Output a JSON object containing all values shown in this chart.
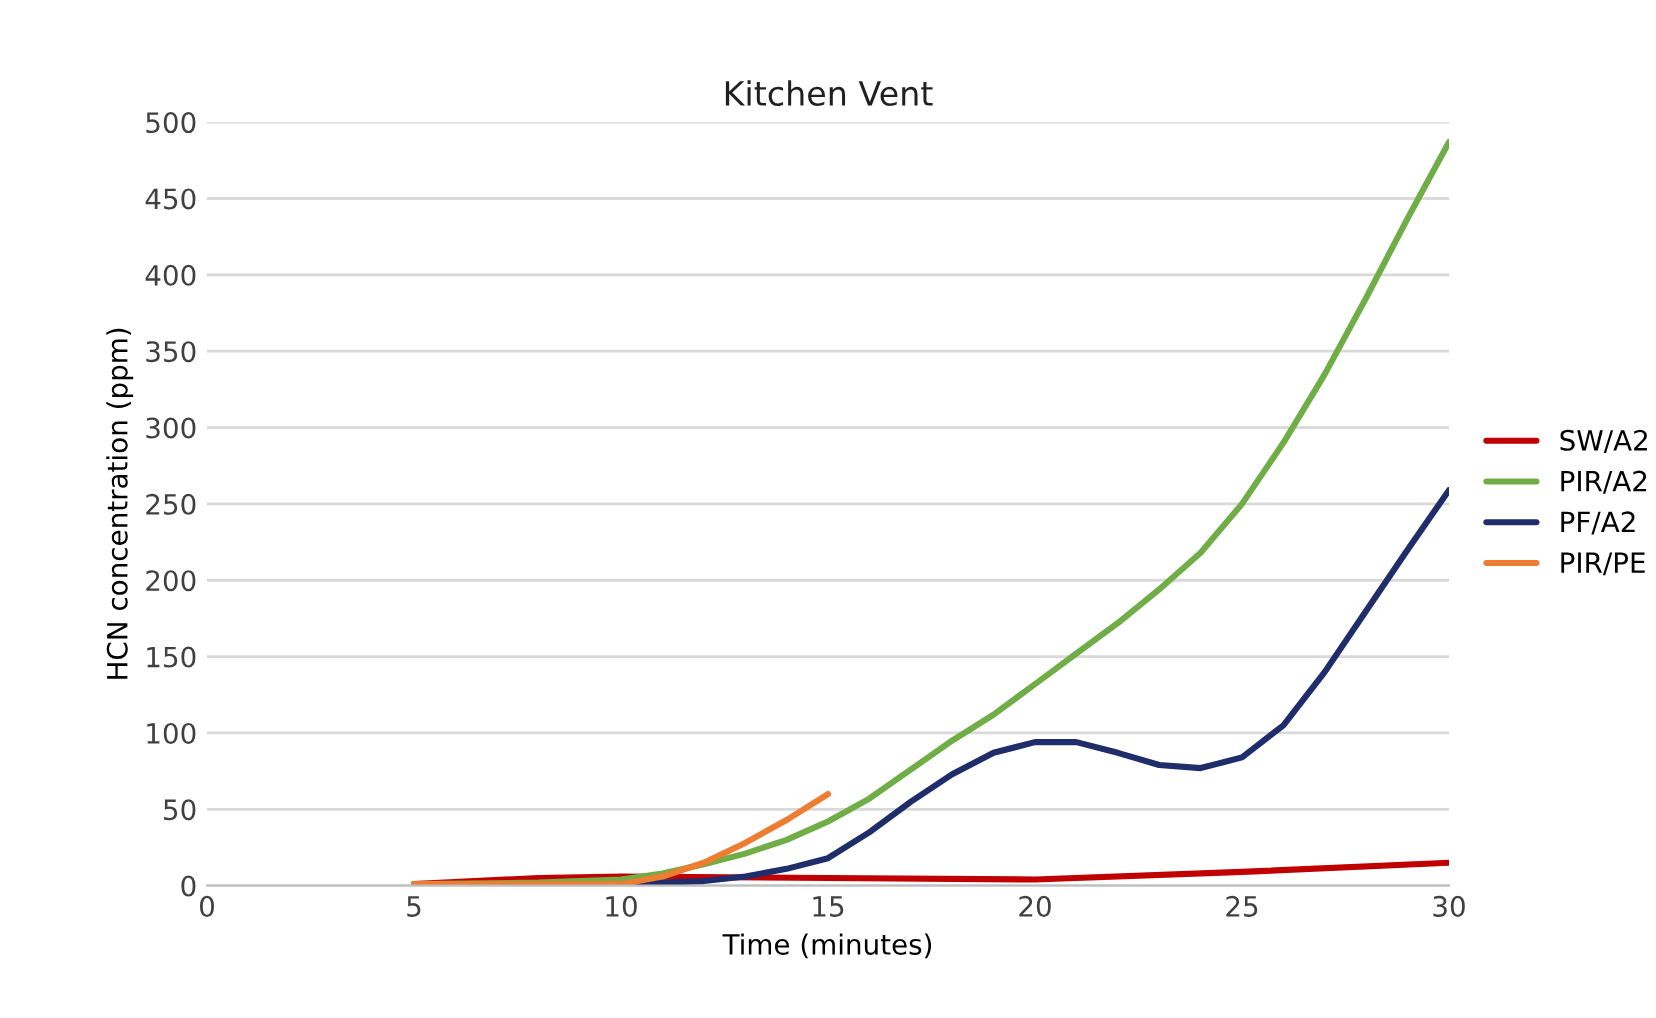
{
  "chart_data": {
    "type": "line",
    "title": "Kitchen Vent",
    "xlabel": "Time (minutes)",
    "ylabel": "HCN concentration (ppm)",
    "xlim": [
      0,
      30
    ],
    "xticks": [
      0,
      5,
      10,
      15,
      20,
      25,
      30
    ],
    "ylim": [
      0,
      500
    ],
    "yticks": [
      0,
      50,
      100,
      150,
      200,
      250,
      300,
      350,
      400,
      450,
      500
    ],
    "grid": "y",
    "legend": "right",
    "marker": "none",
    "line_style": "solid",
    "series": [
      {
        "name": "SW/A2",
        "color": "#c00000",
        "x": [
          5,
          8,
          10,
          15,
          20,
          25,
          30
        ],
        "values": [
          1,
          5,
          6,
          5,
          4,
          9,
          15
        ]
      },
      {
        "name": "PIR/A2",
        "color": "#70ad47",
        "x": [
          5,
          8,
          10,
          11,
          12,
          13,
          14,
          15,
          16,
          17,
          18,
          19,
          20,
          21,
          22,
          23,
          24,
          25,
          26,
          27,
          28,
          29,
          30
        ],
        "values": [
          1,
          2,
          4,
          8,
          14,
          21,
          30,
          42,
          57,
          76,
          95,
          112,
          132,
          152,
          172,
          194,
          218,
          250,
          290,
          335,
          385,
          437,
          487
        ]
      },
      {
        "name": "PF/A2",
        "color": "#1f2d6b",
        "x": [
          8,
          10,
          12,
          13,
          14,
          15,
          16,
          17,
          18,
          19,
          20,
          21,
          22,
          23,
          24,
          25,
          26,
          27,
          28,
          29,
          30
        ],
        "values": [
          0,
          1,
          3,
          6,
          11,
          18,
          35,
          55,
          73,
          87,
          94,
          94,
          87,
          79,
          77,
          84,
          105,
          140,
          180,
          220,
          259
        ]
      },
      {
        "name": "PIR/PE",
        "color": "#ed7d31",
        "x": [
          5,
          8,
          10,
          11,
          12,
          13,
          14,
          15
        ],
        "values": [
          1,
          1,
          1,
          6,
          15,
          28,
          43,
          60
        ]
      }
    ]
  }
}
